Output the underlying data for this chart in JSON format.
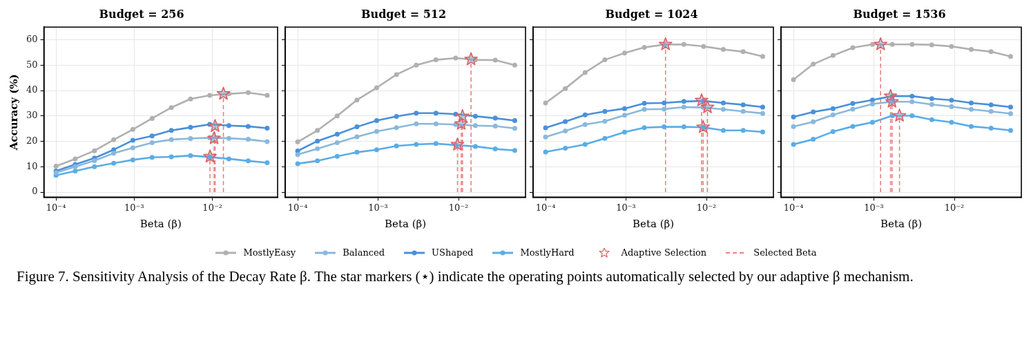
{
  "chart_data": [
    {
      "type": "line",
      "title": "Budget = 256",
      "xlabel": "Beta (β)",
      "ylabel": "Accuracy (%)",
      "log": "x",
      "grid": true,
      "legend": "bottom",
      "marker": "circle",
      "line_style": "solid",
      "x": [
        0.0001,
        0.000176,
        0.00031,
        0.000546,
        0.00096,
        0.00169,
        0.00298,
        0.00524,
        0.00922,
        0.0162,
        0.0286,
        0.05
      ],
      "xlim": [
        7.3e-05,
        0.068
      ],
      "xticks": [
        {
          "value": 0.0001,
          "label": "10⁻⁴"
        },
        {
          "value": 0.001,
          "label": "10⁻³"
        },
        {
          "value": 0.01,
          "label": "10⁻²"
        }
      ],
      "ylim": [
        -2,
        65
      ],
      "yticks": [
        0,
        10,
        20,
        30,
        40,
        50,
        60
      ],
      "series": [
        {
          "name": "MostlyEasy",
          "color": "#b0b0b0",
          "values": [
            10.2,
            13.1,
            16.3,
            20.6,
            24.7,
            29,
            33.3,
            36.7,
            38.1,
            38.7,
            39.2,
            38.1
          ]
        },
        {
          "name": "Balanced",
          "color": "#8ab8dc",
          "values": [
            7.6,
            10,
            12.4,
            15.3,
            17.4,
            19.5,
            20.7,
            21.1,
            21.4,
            21.2,
            20.8,
            19.9
          ]
        },
        {
          "name": "UShaped",
          "color": "#4a90d9",
          "values": [
            8.3,
            10.9,
            13.4,
            16.7,
            20.4,
            22.1,
            24.3,
            25.5,
            26.7,
            26.2,
            25.9,
            25.2
          ]
        },
        {
          "name": "MostlyHard",
          "color": "#5aade6",
          "values": [
            6.6,
            8.3,
            10,
            11.4,
            12.7,
            13.7,
            13.9,
            14.4,
            13.8,
            13.1,
            12.3,
            11.6
          ]
        },
        {
          "name": "Adaptive Selection",
          "type": "scatter",
          "marker": "star",
          "color": "#e06060",
          "x": [
            0.0093,
            0.0105,
            0.0108,
            0.0138
          ],
          "values": [
            14.0,
            21.2,
            26.0,
            38.7
          ]
        },
        {
          "name": "Selected Beta",
          "type": "line",
          "marker": "none",
          "line_style": "dashed",
          "color": "#e88080",
          "x": [
            0.0093,
            0.0093
          ],
          "values": [
            0,
            14.0
          ]
        },
        {
          "type": "line",
          "marker": "none",
          "line_style": "dashed",
          "color": "#e88080",
          "x": [
            0.0105,
            0.0105
          ],
          "values": [
            0,
            21.2
          ]
        },
        {
          "type": "line",
          "marker": "none",
          "line_style": "dashed",
          "color": "#e88080",
          "x": [
            0.0108,
            0.0108
          ],
          "values": [
            0,
            26.0
          ]
        },
        {
          "type": "line",
          "marker": "none",
          "line_style": "dashed",
          "color": "#e88080",
          "x": [
            0.0138,
            0.0138
          ],
          "values": [
            0,
            38.7
          ]
        }
      ],
      "annotations": [
        "Figure 7. Sensitivity Analysis of the Decay Rate β. The star markers (⋆) indicate the operating points automatically selected by our adaptive β mechanism."
      ]
    },
    {
      "type": "line",
      "title": "Budget = 512",
      "xlabel": "Beta (β)",
      "log": "x",
      "grid": true,
      "marker": "circle",
      "line_style": "solid",
      "tick_labels": "x",
      "x": [
        0.0001,
        0.000176,
        0.00031,
        0.000546,
        0.00096,
        0.00169,
        0.00298,
        0.00524,
        0.00922,
        0.0162,
        0.0286,
        0.05
      ],
      "xlim": [
        7.3e-05,
        0.068
      ],
      "xticks": [
        {
          "value": 0.0001,
          "label": "10⁻⁴"
        },
        {
          "value": 0.001,
          "label": "10⁻³"
        },
        {
          "value": 0.01,
          "label": "10⁻²"
        }
      ],
      "ylim": [
        -2,
        65
      ],
      "yticks": [
        0,
        10,
        20,
        30,
        40,
        50,
        60
      ],
      "series": [
        {
          "color": "#b0b0b0",
          "values": [
            19.8,
            24.3,
            30,
            36.3,
            41.1,
            46.3,
            50,
            52.1,
            52.8,
            52.1,
            52,
            50
          ]
        },
        {
          "color": "#8ab8dc",
          "values": [
            14.8,
            17.1,
            19.5,
            21.8,
            23.9,
            25.4,
            26.9,
            26.9,
            26.6,
            26.2,
            26,
            25.1
          ]
        },
        {
          "color": "#4a90d9",
          "values": [
            16.2,
            20.1,
            22.8,
            25.7,
            28.2,
            29.8,
            31.1,
            31.1,
            30.7,
            29.9,
            29.1,
            28.2
          ]
        },
        {
          "color": "#5aade6",
          "values": [
            11.2,
            12.3,
            14.1,
            15.7,
            16.7,
            18.2,
            18.8,
            19.1,
            18.5,
            18,
            17,
            16.4
          ]
        },
        {
          "type": "scatter",
          "marker": "star",
          "color": "#e06060",
          "x": [
            0.0097,
            0.0108,
            0.0112,
            0.0143
          ],
          "values": [
            18.7,
            26.9,
            29.9,
            52.3
          ]
        },
        {
          "type": "line",
          "marker": "none",
          "line_style": "dashed",
          "color": "#e88080",
          "x": [
            0.0097,
            0.0097
          ],
          "values": [
            0,
            18.7
          ]
        },
        {
          "type": "line",
          "marker": "none",
          "line_style": "dashed",
          "color": "#e88080",
          "x": [
            0.0108,
            0.0108
          ],
          "values": [
            0,
            26.9
          ]
        },
        {
          "type": "line",
          "marker": "none",
          "line_style": "dashed",
          "color": "#e88080",
          "x": [
            0.0112,
            0.0112
          ],
          "values": [
            0,
            29.9
          ]
        },
        {
          "type": "line",
          "marker": "none",
          "line_style": "dashed",
          "color": "#e88080",
          "x": [
            0.0143,
            0.0143
          ],
          "values": [
            0,
            52.3
          ]
        }
      ]
    },
    {
      "type": "line",
      "title": "Budget = 1024",
      "xlabel": "Beta (β)",
      "log": "x",
      "grid": true,
      "marker": "circle",
      "line_style": "solid",
      "tick_labels": "x",
      "x": [
        0.0001,
        0.000176,
        0.00031,
        0.000546,
        0.00096,
        0.00169,
        0.00298,
        0.00524,
        0.00922,
        0.0162,
        0.0286,
        0.05
      ],
      "xlim": [
        7.3e-05,
        0.068
      ],
      "xticks": [
        {
          "value": 0.0001,
          "label": "10⁻⁴"
        },
        {
          "value": 0.001,
          "label": "10⁻³"
        },
        {
          "value": 0.01,
          "label": "10⁻²"
        }
      ],
      "ylim": [
        -2,
        65
      ],
      "yticks": [
        0,
        10,
        20,
        30,
        40,
        50,
        60
      ],
      "series": [
        {
          "color": "#b0b0b0",
          "values": [
            35.1,
            40.8,
            47.1,
            52.1,
            54.8,
            57,
            58.1,
            58.2,
            57.4,
            56.2,
            55.3,
            53.4
          ]
        },
        {
          "color": "#8ab8dc",
          "values": [
            21.7,
            24.1,
            26.6,
            27.9,
            30.3,
            32.6,
            32.7,
            33.5,
            33.3,
            32.6,
            31.8,
            31
          ]
        },
        {
          "color": "#4a90d9",
          "values": [
            25.3,
            27.8,
            30.4,
            31.8,
            32.9,
            35,
            35.1,
            35.7,
            35.9,
            35.1,
            34.4,
            33.5
          ]
        },
        {
          "color": "#5aade6",
          "values": [
            15.8,
            17.3,
            18.8,
            21.2,
            23.6,
            25.4,
            25.7,
            25.7,
            25.5,
            24.3,
            24.3,
            23.7
          ]
        },
        {
          "type": "scatter",
          "marker": "star",
          "color": "#e06060",
          "x": [
            0.0031,
            0.0087,
            0.0091,
            0.0103
          ],
          "values": [
            58.2,
            36.1,
            25.6,
            33.4
          ]
        },
        {
          "type": "line",
          "marker": "none",
          "line_style": "dashed",
          "color": "#e88080",
          "x": [
            0.0031,
            0.0031
          ],
          "values": [
            0,
            58.2
          ]
        },
        {
          "type": "line",
          "marker": "none",
          "line_style": "dashed",
          "color": "#e88080",
          "x": [
            0.0087,
            0.0087
          ],
          "values": [
            0,
            36.1
          ]
        },
        {
          "type": "line",
          "marker": "none",
          "line_style": "dashed",
          "color": "#e88080",
          "x": [
            0.0091,
            0.0091
          ],
          "values": [
            0,
            25.6
          ]
        },
        {
          "type": "line",
          "marker": "none",
          "line_style": "dashed",
          "color": "#e88080",
          "x": [
            0.0103,
            0.0103
          ],
          "values": [
            0,
            33.4
          ]
        }
      ]
    },
    {
      "type": "line",
      "title": "Budget = 1536",
      "xlabel": "Beta (β)",
      "log": "x",
      "grid": true,
      "marker": "circle",
      "line_style": "solid",
      "tick_labels": "x",
      "x": [
        0.0001,
        0.000176,
        0.00031,
        0.000546,
        0.00096,
        0.00169,
        0.00298,
        0.00524,
        0.00922,
        0.0162,
        0.0286,
        0.05
      ],
      "xlim": [
        7.3e-05,
        0.068
      ],
      "xticks": [
        {
          "value": 0.0001,
          "label": "10⁻⁴"
        },
        {
          "value": 0.001,
          "label": "10⁻³"
        },
        {
          "value": 0.01,
          "label": "10⁻²"
        }
      ],
      "ylim": [
        -2,
        65
      ],
      "yticks": [
        0,
        10,
        20,
        30,
        40,
        50,
        60
      ],
      "series": [
        {
          "color": "#b0b0b0",
          "values": [
            44.3,
            50.4,
            53.8,
            56.9,
            58.2,
            58.2,
            58.2,
            58,
            57.4,
            56.2,
            55.3,
            53.4
          ]
        },
        {
          "color": "#8ab8dc",
          "values": [
            25.8,
            27.7,
            30.4,
            32.7,
            34.7,
            35.6,
            35.6,
            34.5,
            33.7,
            32.6,
            31.8,
            30.9
          ]
        },
        {
          "color": "#4a90d9",
          "values": [
            29.6,
            31.6,
            32.9,
            34.9,
            36.3,
            37.8,
            37.8,
            36.8,
            36.2,
            35.1,
            34.4,
            33.5
          ]
        },
        {
          "color": "#5aade6",
          "values": [
            18.8,
            20.8,
            23.8,
            25.9,
            27.5,
            30.1,
            30.1,
            28.5,
            27.5,
            25.9,
            25.2,
            24.3
          ]
        },
        {
          "type": "scatter",
          "marker": "star",
          "color": "#e06060",
          "x": [
            0.00121,
            0.00161,
            0.00168,
            0.00208
          ],
          "values": [
            58.2,
            37.8,
            35.6,
            30.1
          ]
        },
        {
          "type": "line",
          "marker": "none",
          "line_style": "dashed",
          "color": "#e88080",
          "x": [
            0.00121,
            0.00121
          ],
          "values": [
            0,
            58.2
          ]
        },
        {
          "type": "line",
          "marker": "none",
          "line_style": "dashed",
          "color": "#e88080",
          "x": [
            0.00161,
            0.00161
          ],
          "values": [
            0,
            37.8
          ]
        },
        {
          "type": "line",
          "marker": "none",
          "line_style": "dashed",
          "color": "#e88080",
          "x": [
            0.00168,
            0.00168
          ],
          "values": [
            0,
            35.6
          ]
        },
        {
          "type": "line",
          "marker": "none",
          "line_style": "dashed",
          "color": "#e88080",
          "x": [
            0.00208,
            0.00208
          ],
          "values": [
            0,
            30.1
          ]
        }
      ]
    }
  ]
}
